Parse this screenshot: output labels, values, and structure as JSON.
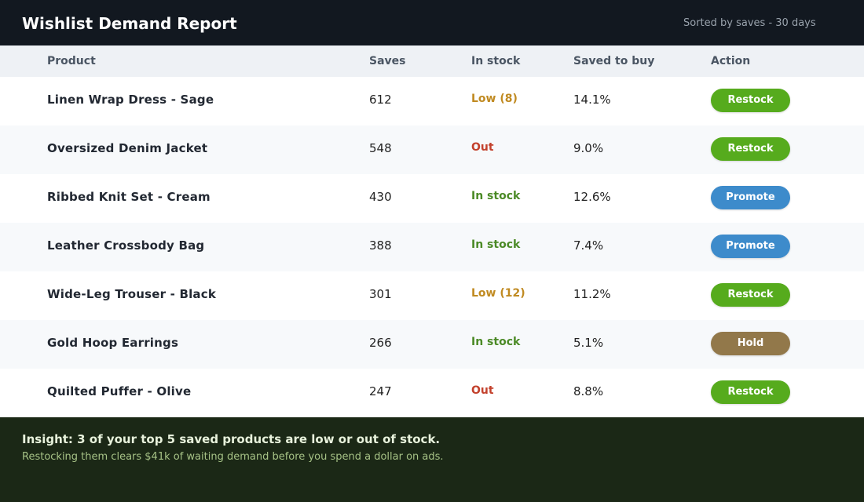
{
  "header": {
    "title": "Wishlist Demand Report",
    "subtitle": "Sorted by saves - 30 days"
  },
  "table": {
    "columns": [
      "Product",
      "Saves",
      "In stock",
      "Saved to buy",
      "Action"
    ],
    "rows": [
      {
        "product": "Linen Wrap Dress - Sage",
        "saves": "612",
        "stock": "Low (8)",
        "stock_status": "low",
        "saved_to_buy": "14.1%",
        "action": "Restock"
      },
      {
        "product": "Oversized Denim Jacket",
        "saves": "548",
        "stock": "Out",
        "stock_status": "out",
        "saved_to_buy": "9.0%",
        "action": "Restock"
      },
      {
        "product": "Ribbed Knit Set - Cream",
        "saves": "430",
        "stock": "In stock",
        "stock_status": "in",
        "saved_to_buy": "12.6%",
        "action": "Promote"
      },
      {
        "product": "Leather Crossbody Bag",
        "saves": "388",
        "stock": "In stock",
        "stock_status": "in",
        "saved_to_buy": "7.4%",
        "action": "Promote"
      },
      {
        "product": "Wide-Leg Trouser - Black",
        "saves": "301",
        "stock": "Low (12)",
        "stock_status": "low",
        "saved_to_buy": "11.2%",
        "action": "Restock"
      },
      {
        "product": "Gold Hoop Earrings",
        "saves": "266",
        "stock": "In stock",
        "stock_status": "in",
        "saved_to_buy": "5.1%",
        "action": "Hold"
      },
      {
        "product": "Quilted Puffer - Olive",
        "saves": "247",
        "stock": "Out",
        "stock_status": "out",
        "saved_to_buy": "8.8%",
        "action": "Restock"
      }
    ]
  },
  "footer": {
    "insight": "Insight: 3 of your top 5 saved products are low or out of stock.",
    "detail": "Restocking them clears $41k of waiting demand before you spend a dollar on ads."
  },
  "colors": {
    "header_bg": "#121820",
    "footer_bg": "#1b2816",
    "restock": "#56ab1d",
    "promote": "#3d8bcb",
    "hold": "#92784a",
    "stock_low": "#c08a21",
    "stock_out": "#c3412c",
    "stock_in": "#4b8a26"
  }
}
